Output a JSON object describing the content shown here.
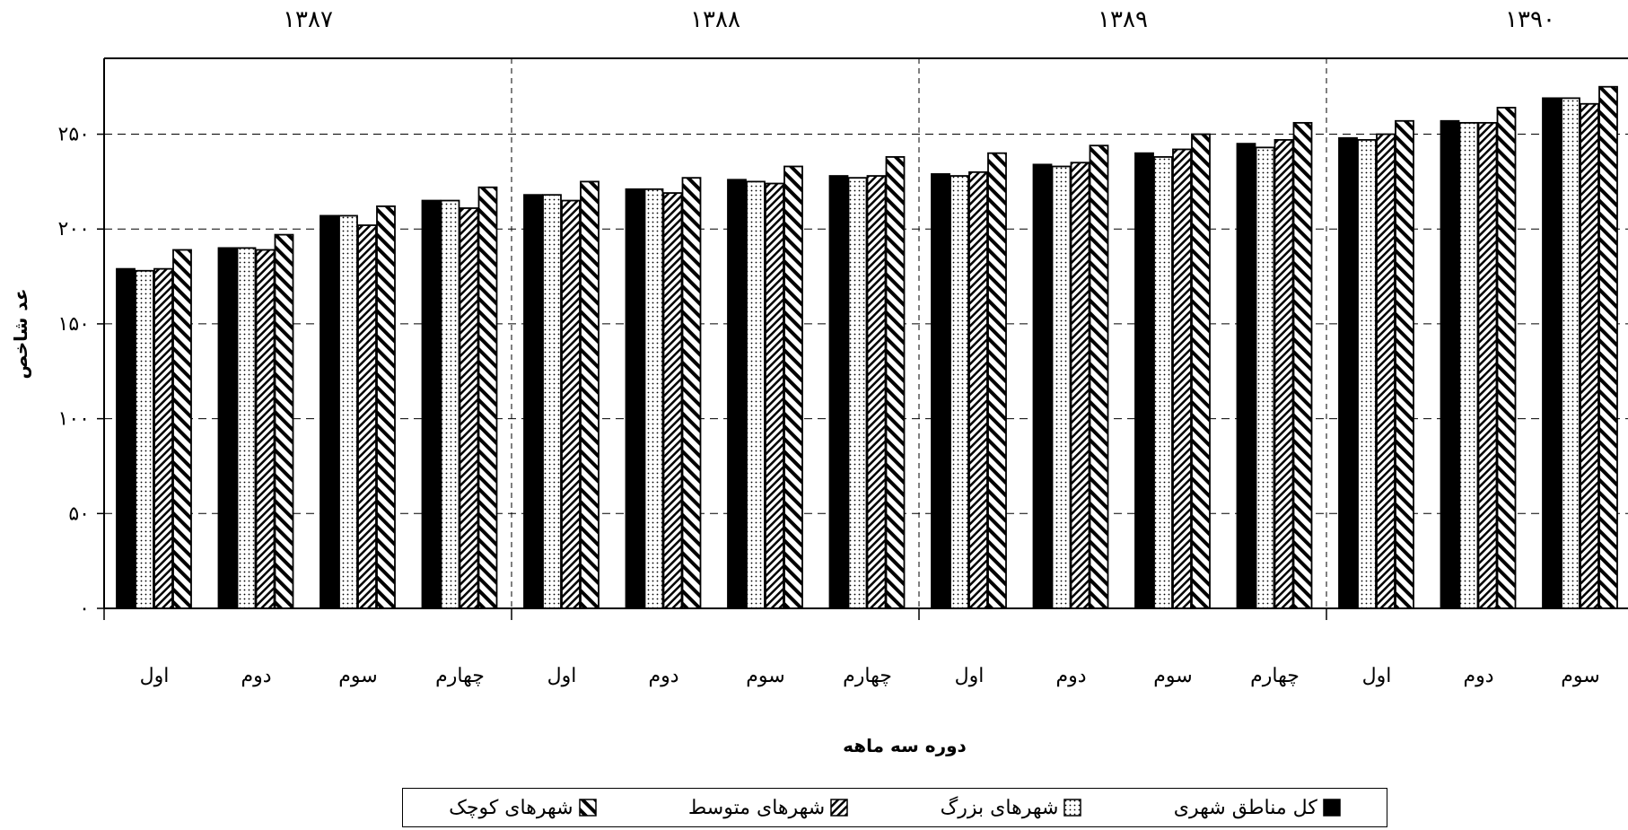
{
  "chart_data": {
    "type": "bar",
    "ylabel": "عد شاخص",
    "xlabel": "دوره سه ماهه",
    "ylim": [
      0,
      290
    ],
    "yticks": [
      {
        "value": 0,
        "label": "۰"
      },
      {
        "value": 50,
        "label": "۵۰"
      },
      {
        "value": 100,
        "label": "۱۰۰"
      },
      {
        "value": 150,
        "label": "۱۵۰"
      },
      {
        "value": 200,
        "label": "۲۰۰"
      },
      {
        "value": 250,
        "label": "۲۵۰"
      }
    ],
    "grid": true,
    "legend_position": "bottom",
    "years": [
      {
        "label": "۱۳۸۷",
        "count": 4
      },
      {
        "label": "۱۳۸۸",
        "count": 4
      },
      {
        "label": "۱۳۸۹",
        "count": 4
      },
      {
        "label": "۱۳۹۰",
        "count": 3
      }
    ],
    "categories": [
      "اول",
      "دوم",
      "سوم",
      "چهارم",
      "اول",
      "دوم",
      "سوم",
      "چهارم",
      "اول",
      "دوم",
      "سوم",
      "چهارم",
      "اول",
      "دوم",
      "سوم"
    ],
    "series": [
      {
        "name": "کل مناطق شهری",
        "pattern": "solid",
        "values": [
          179,
          190,
          207,
          215,
          218,
          221,
          226,
          228,
          229,
          234,
          240,
          245,
          248,
          257,
          269
        ]
      },
      {
        "name": "شهرهای بزرگ",
        "pattern": "dots",
        "values": [
          178,
          190,
          207,
          215,
          218,
          221,
          225,
          227,
          228,
          233,
          238,
          243,
          247,
          256,
          269
        ]
      },
      {
        "name": "شهرهای متوسط",
        "pattern": "hatch-light",
        "values": [
          179,
          189,
          202,
          211,
          215,
          219,
          224,
          228,
          230,
          235,
          242,
          247,
          250,
          256,
          266
        ]
      },
      {
        "name": "شهرهای کوچک",
        "pattern": "hatch-bold",
        "values": [
          189,
          197,
          212,
          222,
          225,
          227,
          233,
          238,
          240,
          244,
          250,
          256,
          257,
          264,
          275
        ]
      }
    ]
  }
}
